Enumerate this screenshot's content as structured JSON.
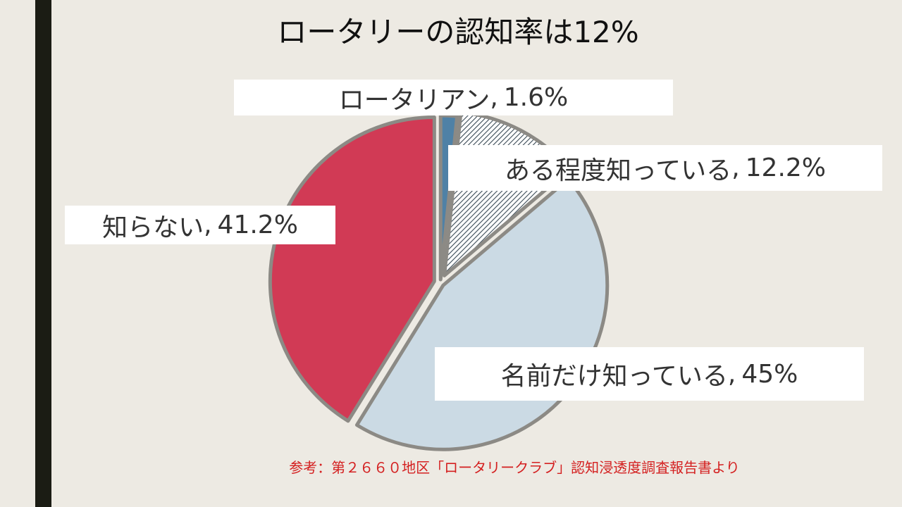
{
  "slide": {
    "title": "ロータリーの認知率は12%",
    "source": "参考：第２６６０地区「ロータリークラブ」認知浸透度調査報告書より"
  },
  "chart_data": {
    "type": "pie",
    "title": "ロータリーの認知率は12%",
    "slices": [
      {
        "name": "ロータリアン",
        "value": 1.6,
        "label": "1.6%",
        "color": "#4f81a6",
        "fill": "solid"
      },
      {
        "name": "ある程度知っている",
        "value": 12.2,
        "label": "12.2%",
        "color": "#3a4a55",
        "fill": "hatch"
      },
      {
        "name": "名前だけ知っている",
        "value": 45,
        "label": "45%",
        "color": "#cbdae4",
        "fill": "solid"
      },
      {
        "name": "知らない",
        "value": 41.2,
        "label": "41.2%",
        "color": "#d13a55",
        "fill": "solid"
      }
    ],
    "start": "12 o'clock",
    "direction": "clockwise",
    "exploded": true,
    "border_color": "#8c8a85",
    "legend": "none"
  }
}
